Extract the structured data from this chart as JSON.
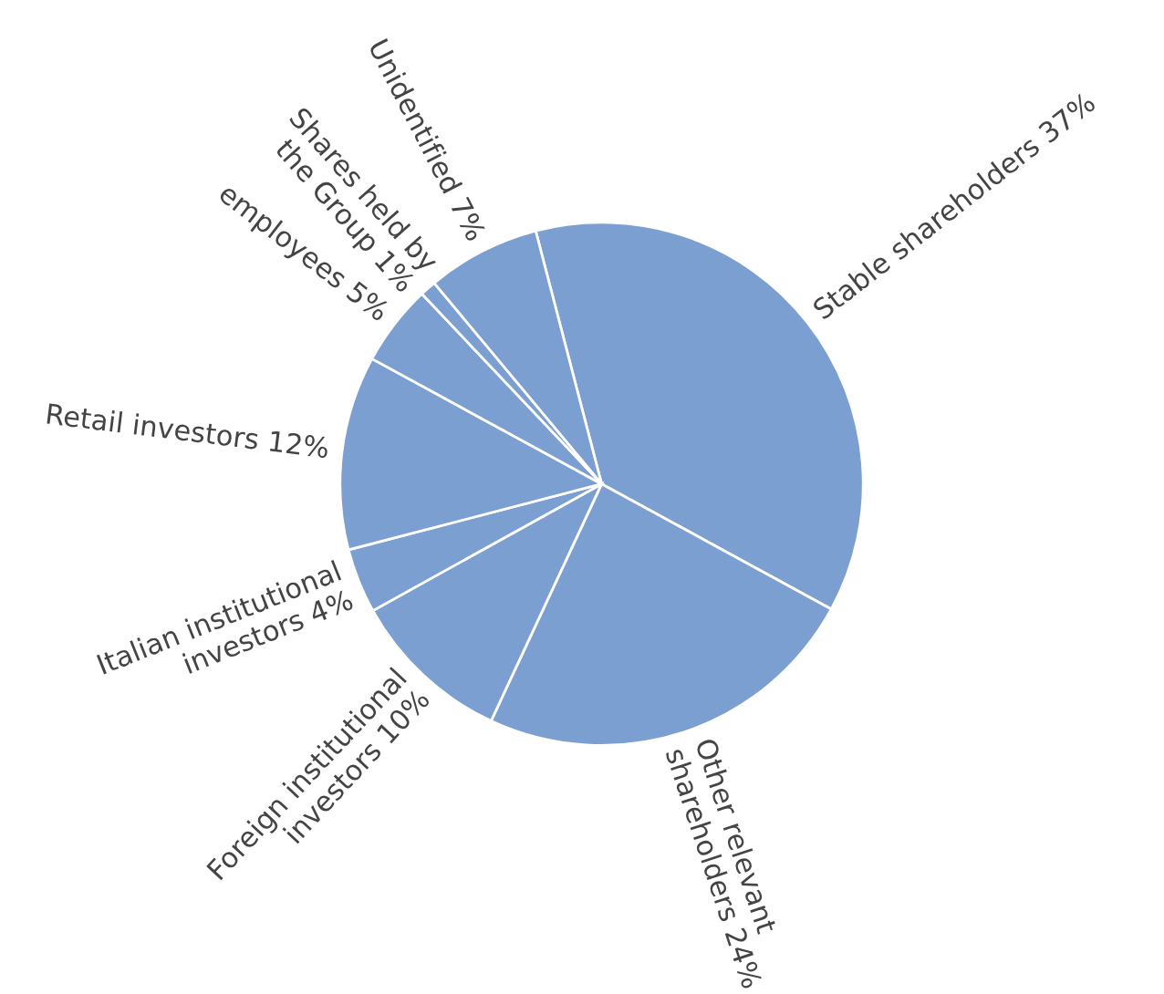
{
  "chart_data": {
    "type": "pie",
    "categories": [
      "Stable shareholders 37%",
      "Other relevant\nshareholders 24%",
      "Foreign institutional\ninvestors 10%",
      "Italian institutional\ninvestors 4%",
      "Retail investors 12%",
      "employees 5%",
      "Shares held by\nthe Group 1%",
      "Unidentified 7%"
    ],
    "values": [
      37,
      24,
      10,
      4,
      12,
      5,
      1,
      7
    ],
    "colors": [
      "#7b9fd1",
      "#7b9fd1",
      "#7b9fd1",
      "#7b9fd1",
      "#7b9fd1",
      "#7b9fd1",
      "#7b9fd1",
      "#7b9fd1"
    ]
  }
}
